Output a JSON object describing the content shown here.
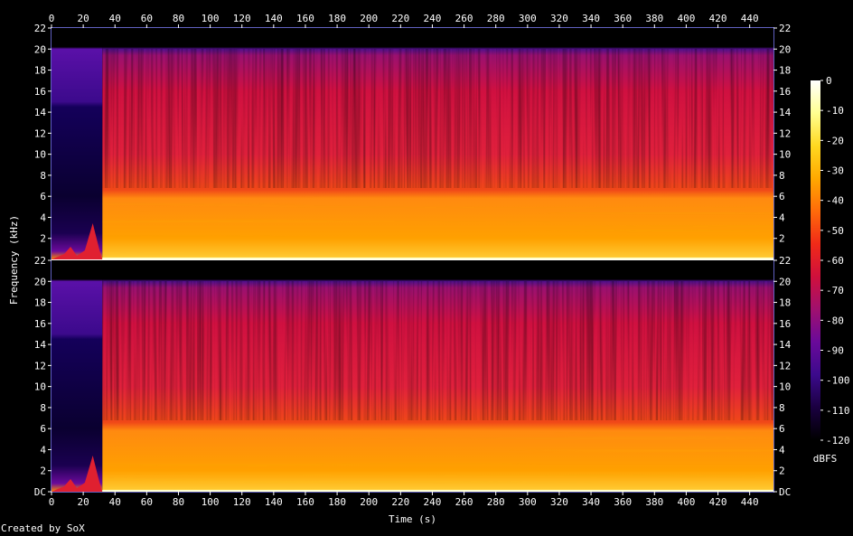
{
  "chart_data": {
    "type": "heatmap",
    "subtype": "spectrogram",
    "xlabel": "Time (s)",
    "ylabel": "Frequency (kHz)",
    "x_ticks": [
      0,
      20,
      40,
      60,
      80,
      100,
      120,
      140,
      160,
      180,
      200,
      220,
      240,
      260,
      280,
      300,
      320,
      340,
      360,
      380,
      400,
      420,
      440
    ],
    "x_range": [
      0,
      455
    ],
    "channels": [
      {
        "y_tick_labels": [
          "22",
          "20",
          "18",
          "16",
          "14",
          "12",
          "10",
          "8",
          "6",
          "4",
          "2"
        ]
      },
      {
        "y_tick_labels": [
          "22",
          "20",
          "18",
          "16",
          "14",
          "12",
          "10",
          "8",
          "6",
          "4",
          "2",
          "DC"
        ]
      }
    ],
    "y_range_khz": [
      0,
      22
    ],
    "colorbar": {
      "label": "dBFS",
      "ticks": [
        0,
        -10,
        -20,
        -30,
        -40,
        -50,
        -60,
        -70,
        -80,
        -90,
        -100,
        -110,
        -120
      ],
      "range": [
        -120,
        0
      ],
      "colors": [
        "#000000",
        "#1a0040",
        "#3c0a8c",
        "#6a0a9a",
        "#a0106e",
        "#d0103c",
        "#f02a18",
        "#ff6a0a",
        "#ffa800",
        "#ffd820",
        "#ffff90",
        "#ffffff"
      ]
    },
    "features": {
      "intro_quiet_end_s": 32,
      "band_edges_khz": {
        "upper_limit": 20,
        "bright_band_top": 6.5
      }
    }
  },
  "credit": "Created by SoX"
}
